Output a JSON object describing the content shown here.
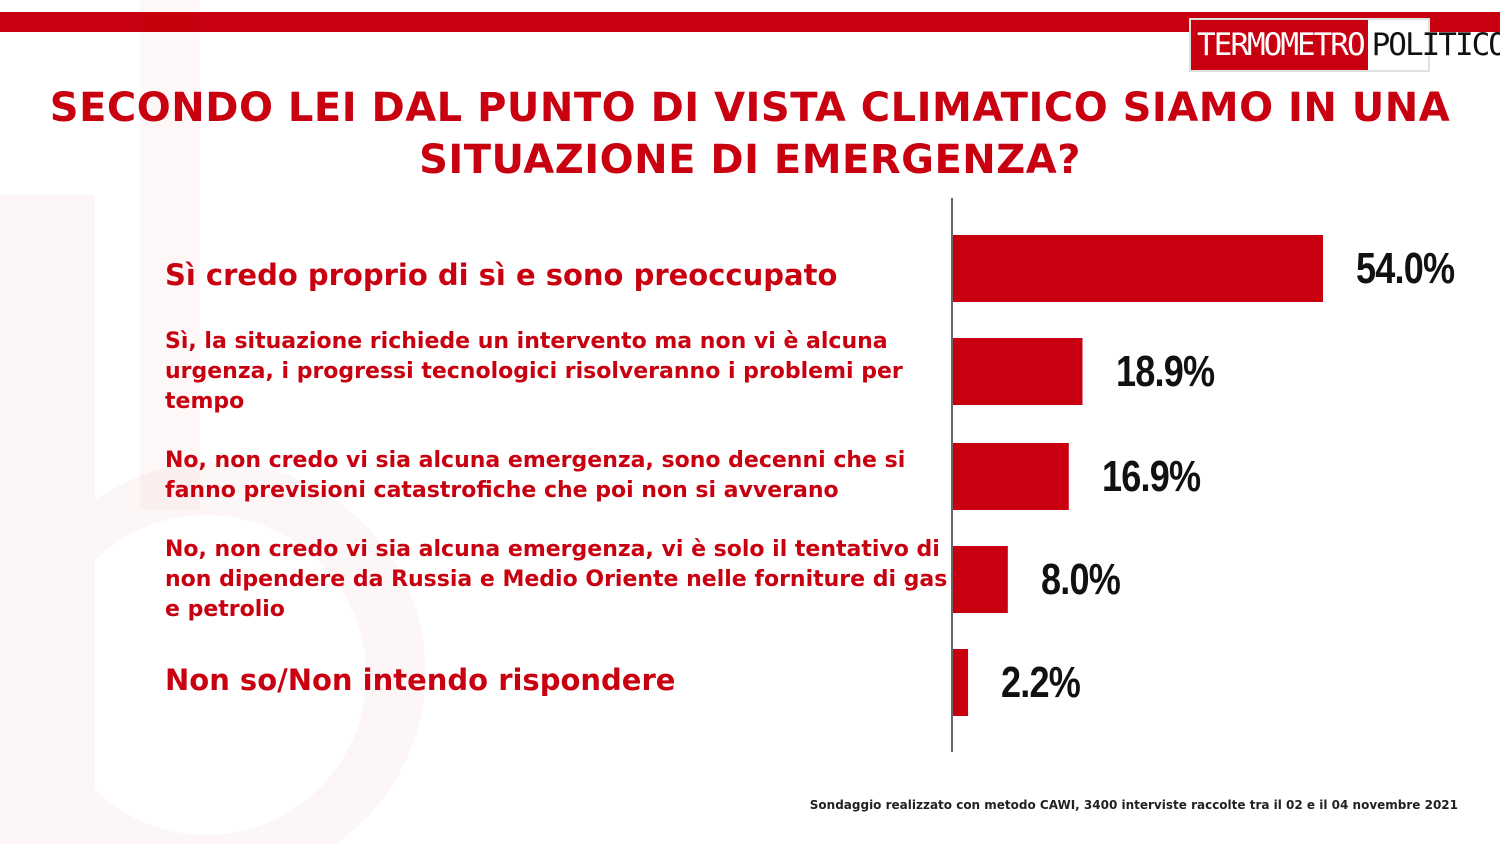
{
  "logo": {
    "left": "TERMOMETRO",
    "right": "POLITICO"
  },
  "title": "SECONDO LEI DAL PUNTO DI VISTA CLIMATICO SIAMO IN UNA SITUAZIONE DI EMERGENZA?",
  "footnote": "Sondaggio realizzato con metodo CAWI, 3400 interviste raccolte tra il 02 e il 04 novembre 2021",
  "colors": {
    "accent": "#c8000f",
    "value_text": "#111111"
  },
  "chart_data": {
    "type": "bar",
    "orientation": "horizontal",
    "categories": [
      "Sì credo proprio di sì e sono preoccupato",
      "Sì, la situazione richiede un intervento ma non vi è alcuna urgenza, i progressi tecnologici risolveranno i problemi per tempo",
      "No, non credo vi sia alcuna emergenza, sono decenni che si fanno previsioni catastrofiche che poi non si avverano",
      "No, non credo vi sia alcuna emergenza, vi è solo il tentativo di non dipendere da Russia e Medio Oriente nelle forniture di gas e petrolio",
      "Non so/Non intendo rispondere"
    ],
    "values": [
      54.0,
      18.9,
      16.9,
      8.0,
      2.2
    ],
    "value_labels": [
      "54.0%",
      "18.9%",
      "16.9%",
      "8.0%",
      "2.2%"
    ],
    "xlim": [
      0,
      54.0
    ],
    "grid": false,
    "legend": "none"
  }
}
